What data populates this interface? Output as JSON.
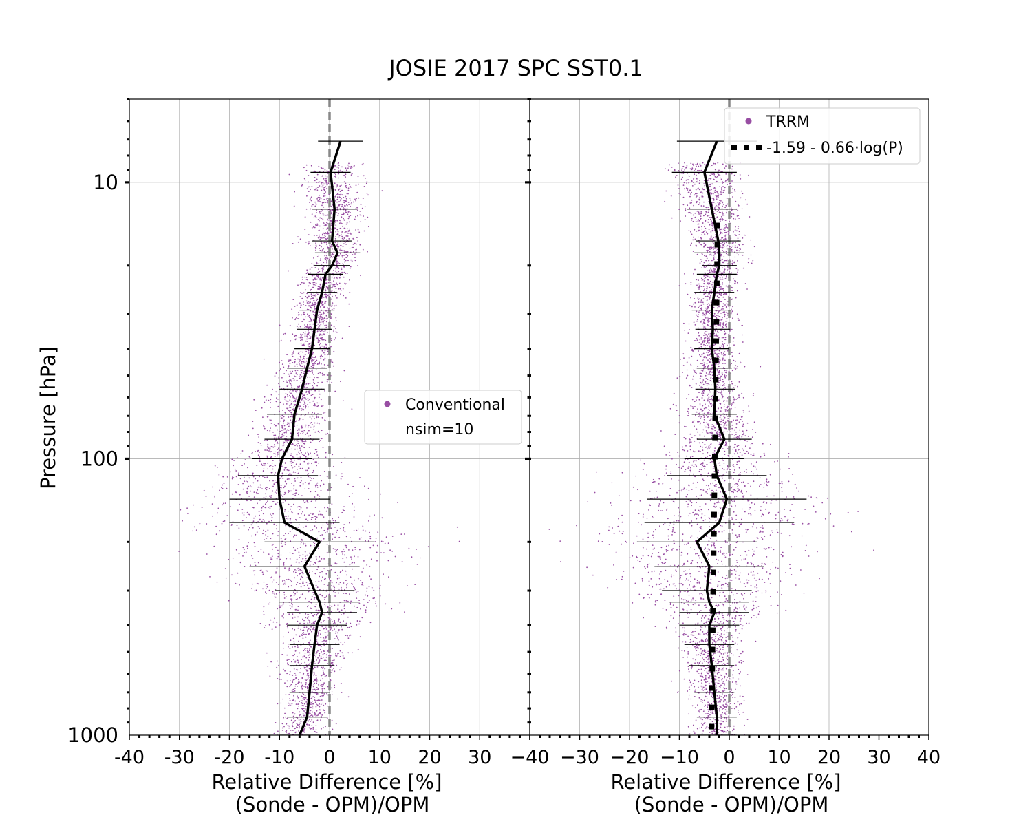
{
  "title": "JOSIE 2017 SPC SST0.1",
  "colors": {
    "scatter": "#984ea3",
    "mean_line": "#000000",
    "zero_line": "#888888",
    "grid": "#b0b0b0"
  },
  "chart_data": [
    {
      "type": "scatter",
      "panel": "left",
      "xlabel": "Relative Difference [%]",
      "xlabel2": "(Sonde - OPM)/OPM",
      "ylabel": "Pressure [hPa]",
      "x_tick_labels": [
        "-40",
        "-30",
        "-20",
        "-10",
        "0",
        "10",
        "20",
        "30"
      ],
      "y_tick_labels": [
        "10",
        "100",
        "1000"
      ],
      "xlim": [
        -40,
        40
      ],
      "ylim": [
        1000,
        5
      ],
      "y_scale": "log",
      "y_inverted": true,
      "grid": true,
      "legend_position": "center-right",
      "legend": [
        {
          "label": "Conventional",
          "marker": "dot"
        },
        {
          "label": "nsim=10",
          "marker": "none"
        }
      ],
      "mean_profile": {
        "pressure": [
          7.1,
          9.2,
          12.5,
          16.3,
          18,
          20,
          21.5,
          25,
          29,
          34,
          40,
          47,
          56,
          69,
          85,
          100,
          115,
          140,
          170,
          200,
          245,
          300,
          330,
          360,
          400,
          470,
          560,
          700,
          860,
          1000
        ],
        "diff": [
          2.2,
          0.2,
          1,
          0.5,
          1.6,
          0.5,
          -0.8,
          -1.5,
          -2.5,
          -3,
          -3.5,
          -4.5,
          -5.5,
          -7,
          -7.5,
          -9.5,
          -10.3,
          -10,
          -9,
          -2,
          -5,
          -3,
          -2,
          -1.5,
          -2.5,
          -3,
          -3.5,
          -4,
          -4.5,
          -6
        ]
      },
      "std_dev": [
        4.5,
        4,
        4.5,
        4,
        4.5,
        3.5,
        3.5,
        3,
        3.5,
        3.5,
        3.5,
        4,
        4.5,
        5.5,
        5.5,
        6,
        8,
        10,
        11,
        11,
        11,
        8,
        8,
        7,
        6,
        5,
        4.5,
        4,
        4,
        4
      ],
      "cloud_spread": [
        8,
        5.5,
        5,
        5,
        4.5,
        4.5,
        4,
        4,
        4,
        4,
        4,
        4.5,
        5,
        5.5,
        6,
        8,
        10,
        13,
        16,
        18,
        17,
        14,
        12,
        10,
        8,
        6,
        5,
        4.5,
        4,
        4.5
      ]
    },
    {
      "type": "scatter",
      "panel": "right",
      "xlabel": "Relative Difference [%]",
      "xlabel2": "(Sonde - OPM)/OPM",
      "x_tick_labels": [
        "−40",
        "−30",
        "−20",
        "−10",
        "0",
        "10",
        "20",
        "30",
        "40"
      ],
      "xlim": [
        -40,
        40
      ],
      "ylim": [
        1000,
        5
      ],
      "y_scale": "log",
      "y_inverted": true,
      "grid": true,
      "legend_position": "top-right",
      "legend": [
        {
          "label": "TRRM",
          "marker": "dot"
        },
        {
          "label": "-1.59 - 0.66·log(P)",
          "marker": "dotted-line"
        }
      ],
      "fit": {
        "intercept": -1.59,
        "slope": -0.66,
        "log_base": 10,
        "p_range": [
          14,
          1000
        ]
      },
      "mean_profile": {
        "pressure": [
          7.1,
          9.2,
          12.5,
          16.3,
          18,
          20,
          21.5,
          25,
          29,
          34,
          40,
          47,
          56,
          69,
          85,
          100,
          115,
          140,
          170,
          200,
          245,
          300,
          330,
          360,
          400,
          470,
          560,
          700,
          860,
          1000
        ],
        "diff": [
          -2.5,
          -5,
          -3.5,
          -2.2,
          -2,
          -2,
          -2.5,
          -3,
          -3.5,
          -3.3,
          -3.5,
          -3,
          -2.8,
          -3,
          -1,
          -3,
          -2.5,
          -0.5,
          -2,
          -6.5,
          -4,
          -4.5,
          -4,
          -3,
          -4,
          -4,
          -3.5,
          -3,
          -2.5,
          -2.5
        ]
      },
      "std_dev": [
        8,
        6.5,
        5,
        4.5,
        5,
        3.5,
        4,
        4,
        4,
        3.5,
        3.5,
        3.5,
        4,
        4.5,
        5.5,
        6,
        10,
        16,
        15,
        12,
        11,
        9,
        8,
        7,
        6,
        5,
        4.5,
        4,
        4,
        4
      ],
      "cloud_spread": [
        8,
        6.5,
        5,
        5,
        4.5,
        4.5,
        4,
        4,
        4,
        4,
        4,
        4.5,
        5,
        5.5,
        6.5,
        10,
        14,
        18,
        20,
        17,
        16,
        13,
        11,
        9,
        7,
        5.5,
        5,
        4.5,
        4,
        4.5
      ]
    }
  ]
}
